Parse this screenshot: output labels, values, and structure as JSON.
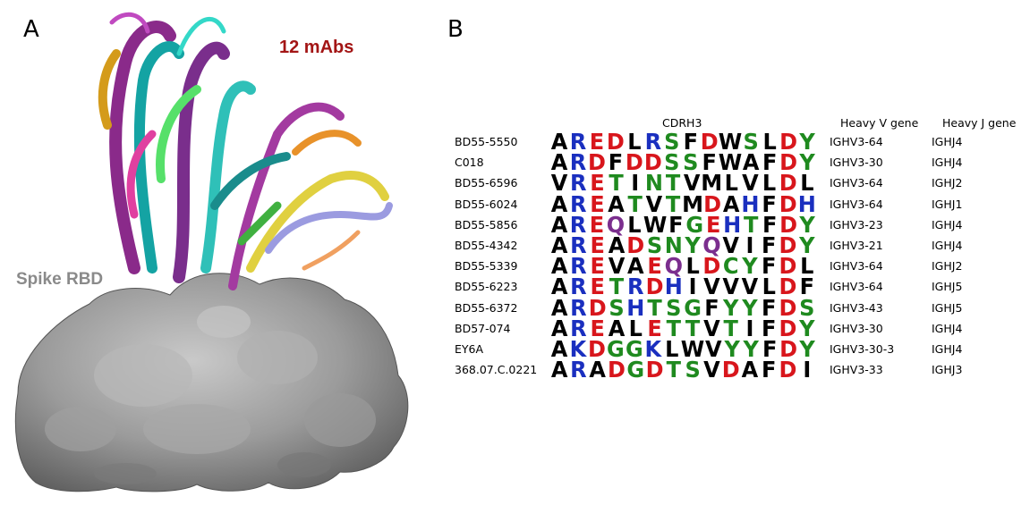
{
  "figure": {
    "panel_a_letter": "A",
    "panel_b_letter": "B",
    "mabs_label": "12 mAbs",
    "rbd_label": "Spike RBD",
    "colors": {
      "mabs_label": "#a31515",
      "rbd_label": "#8a8a8a",
      "surface": "#8d8d8d",
      "aa_black": "#000000",
      "aa_red": "#d8161c",
      "aa_blue": "#1a2fbf",
      "aa_green": "#1f8a1f",
      "aa_purple": "#7b2e8e"
    }
  },
  "table": {
    "headers": {
      "cdrh3": "CDRH3",
      "v_gene": "Heavy V gene",
      "j_gene": "Heavy J gene"
    },
    "rows": [
      {
        "name": "BD55-5550",
        "seq": "AREDLRSFDWSLDY",
        "v": "IGHV3-64",
        "j": "IGHJ4"
      },
      {
        "name": "C018",
        "seq": "ARDFDDSSFWAFDY",
        "v": "IGHV3-30",
        "j": "IGHJ4"
      },
      {
        "name": "BD55-6596",
        "seq": "VRETINTVMLVLDL",
        "v": "IGHV3-64",
        "j": "IGHJ2"
      },
      {
        "name": "BD55-6024",
        "seq": "AREATVTMDAHFDH",
        "v": "IGHV3-64",
        "j": "IGHJ1"
      },
      {
        "name": "BD55-5856",
        "seq": "AREQLWFGEHTFDY",
        "v": "IGHV3-23",
        "j": "IGHJ4"
      },
      {
        "name": "BD55-4342",
        "seq": "AREADSNYQVIFDY",
        "v": "IGHV3-21",
        "j": "IGHJ4"
      },
      {
        "name": "BD55-5339",
        "seq": "AREVAEQLDCYFDL",
        "v": "IGHV3-64",
        "j": "IGHJ2"
      },
      {
        "name": "BD55-6223",
        "seq": "ARETRDHIVVVLDF",
        "v": "IGHV3-64",
        "j": "IGHJ5"
      },
      {
        "name": "BD55-6372",
        "seq": "ARDSHTSGFYYFDS",
        "v": "IGHV3-43",
        "j": "IGHJ5"
      },
      {
        "name": "BD57-074",
        "seq": "AREALETTVTIFDY",
        "v": "IGHV3-30",
        "j": "IGHJ4"
      },
      {
        "name": "EY6A",
        "seq": "AKDGGKLWVYYFDY",
        "v": "IGHV3-30-3",
        "j": "IGHJ4"
      },
      {
        "name": "368.07.C.0221",
        "seq": "ARADGDTSVDAFDI",
        "v": "IGHV3-33",
        "j": "IGHJ3"
      }
    ]
  }
}
